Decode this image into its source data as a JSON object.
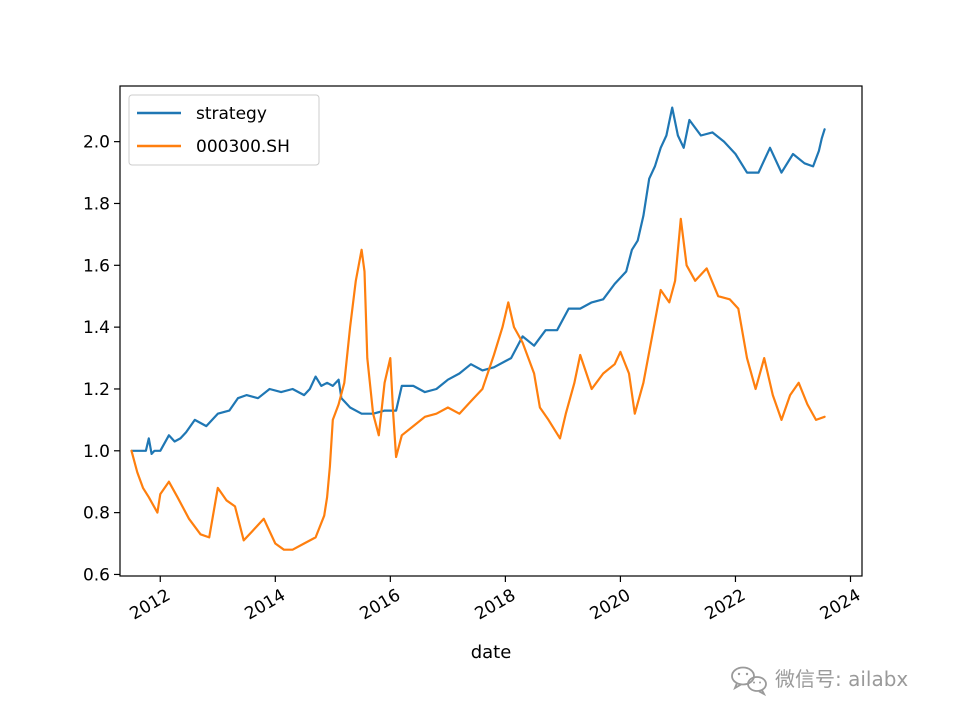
{
  "chart_data": {
    "type": "line",
    "title": "",
    "xlabel": "date",
    "ylabel": "",
    "xlim": [
      2011.3,
      2024.2
    ],
    "ylim": [
      0.595,
      2.18
    ],
    "x_ticks": [
      2012,
      2014,
      2016,
      2018,
      2020,
      2022,
      2024
    ],
    "x_tick_labels": [
      "2012",
      "2014",
      "2016",
      "2018",
      "2020",
      "2022",
      "2024"
    ],
    "y_ticks": [
      0.6,
      0.8,
      1.0,
      1.2,
      1.4,
      1.6,
      1.8,
      2.0
    ],
    "y_tick_labels": [
      "0.6",
      "0.8",
      "1.0",
      "1.2",
      "1.4",
      "1.6",
      "1.8",
      "2.0"
    ],
    "legend_position": "upper-left",
    "series": [
      {
        "name": "strategy",
        "color": "#1f77b4",
        "x": [
          2011.5,
          2011.75,
          2011.8,
          2011.85,
          2011.9,
          2012.0,
          2012.15,
          2012.25,
          2012.35,
          2012.45,
          2012.6,
          2012.8,
          2013.0,
          2013.2,
          2013.35,
          2013.5,
          2013.7,
          2013.9,
          2014.1,
          2014.3,
          2014.5,
          2014.6,
          2014.7,
          2014.8,
          2014.9,
          2015.0,
          2015.1,
          2015.15,
          2015.2,
          2015.3,
          2015.5,
          2015.7,
          2015.9,
          2016.1,
          2016.2,
          2016.4,
          2016.6,
          2016.8,
          2017.0,
          2017.2,
          2017.4,
          2017.6,
          2017.8,
          2018.0,
          2018.1,
          2018.3,
          2018.5,
          2018.7,
          2018.9,
          2019.1,
          2019.3,
          2019.5,
          2019.7,
          2019.9,
          2020.1,
          2020.2,
          2020.3,
          2020.4,
          2020.5,
          2020.6,
          2020.7,
          2020.8,
          2020.9,
          2021.0,
          2021.1,
          2021.2,
          2021.4,
          2021.6,
          2021.8,
          2022.0,
          2022.2,
          2022.4,
          2022.6,
          2022.8,
          2023.0,
          2023.2,
          2023.35,
          2023.45,
          2023.5,
          2023.55
        ],
        "values": [
          1.0,
          1.0,
          1.04,
          0.99,
          1.0,
          1.0,
          1.05,
          1.03,
          1.04,
          1.06,
          1.1,
          1.08,
          1.12,
          1.13,
          1.17,
          1.18,
          1.17,
          1.2,
          1.19,
          1.2,
          1.18,
          1.2,
          1.24,
          1.21,
          1.22,
          1.21,
          1.23,
          1.17,
          1.16,
          1.14,
          1.12,
          1.12,
          1.13,
          1.13,
          1.21,
          1.21,
          1.19,
          1.2,
          1.23,
          1.25,
          1.28,
          1.26,
          1.27,
          1.29,
          1.3,
          1.37,
          1.34,
          1.39,
          1.39,
          1.46,
          1.46,
          1.48,
          1.49,
          1.54,
          1.58,
          1.65,
          1.68,
          1.76,
          1.88,
          1.92,
          1.98,
          2.02,
          2.11,
          2.02,
          1.98,
          2.07,
          2.02,
          2.03,
          2.0,
          1.96,
          1.9,
          1.9,
          1.98,
          1.9,
          1.96,
          1.93,
          1.92,
          1.97,
          2.01,
          2.04
        ]
      },
      {
        "name": "000300.SH",
        "color": "#ff7f0e",
        "x": [
          2011.5,
          2011.6,
          2011.7,
          2011.8,
          2011.95,
          2012.0,
          2012.15,
          2012.3,
          2012.5,
          2012.7,
          2012.85,
          2013.0,
          2013.15,
          2013.3,
          2013.45,
          2013.6,
          2013.8,
          2014.0,
          2014.15,
          2014.3,
          2014.5,
          2014.7,
          2014.85,
          2014.9,
          2014.95,
          2015.0,
          2015.1,
          2015.2,
          2015.3,
          2015.4,
          2015.45,
          2015.5,
          2015.55,
          2015.6,
          2015.7,
          2015.8,
          2015.9,
          2016.0,
          2016.05,
          2016.1,
          2016.2,
          2016.4,
          2016.6,
          2016.8,
          2017.0,
          2017.2,
          2017.4,
          2017.6,
          2017.8,
          2017.95,
          2018.05,
          2018.15,
          2018.3,
          2018.5,
          2018.6,
          2018.75,
          2018.95,
          2019.05,
          2019.2,
          2019.3,
          2019.5,
          2019.7,
          2019.9,
          2020.0,
          2020.15,
          2020.25,
          2020.4,
          2020.55,
          2020.7,
          2020.85,
          2020.95,
          2021.05,
          2021.15,
          2021.3,
          2021.5,
          2021.7,
          2021.9,
          2022.05,
          2022.2,
          2022.35,
          2022.5,
          2022.65,
          2022.8,
          2022.95,
          2023.1,
          2023.25,
          2023.4,
          2023.55
        ],
        "values": [
          1.0,
          0.93,
          0.88,
          0.85,
          0.8,
          0.86,
          0.9,
          0.85,
          0.78,
          0.73,
          0.72,
          0.88,
          0.84,
          0.82,
          0.71,
          0.74,
          0.78,
          0.7,
          0.68,
          0.68,
          0.7,
          0.72,
          0.79,
          0.85,
          0.95,
          1.1,
          1.15,
          1.22,
          1.4,
          1.55,
          1.6,
          1.65,
          1.58,
          1.3,
          1.12,
          1.05,
          1.22,
          1.3,
          1.12,
          0.98,
          1.05,
          1.08,
          1.11,
          1.12,
          1.14,
          1.12,
          1.16,
          1.2,
          1.31,
          1.4,
          1.48,
          1.4,
          1.35,
          1.25,
          1.14,
          1.1,
          1.04,
          1.12,
          1.22,
          1.31,
          1.2,
          1.25,
          1.28,
          1.32,
          1.25,
          1.12,
          1.22,
          1.37,
          1.52,
          1.48,
          1.55,
          1.75,
          1.6,
          1.55,
          1.59,
          1.5,
          1.49,
          1.46,
          1.3,
          1.2,
          1.3,
          1.18,
          1.1,
          1.18,
          1.22,
          1.15,
          1.1,
          1.11
        ]
      }
    ]
  },
  "watermark": {
    "label": "微信号: ailabx",
    "icon": "wechat-icon"
  }
}
